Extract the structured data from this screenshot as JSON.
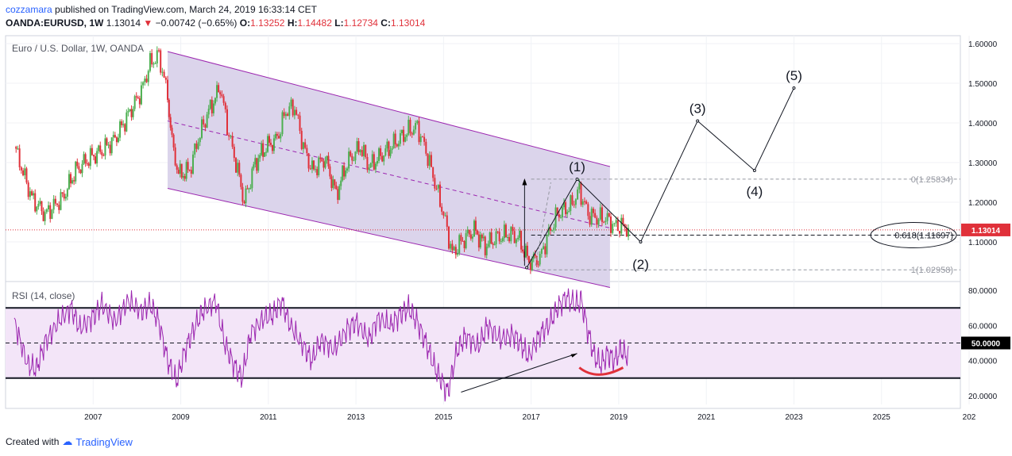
{
  "header": {
    "author": "cozzamara",
    "published_text": "published on TradingView.com, March 24, 2019 16:33:14 CET",
    "symbol": "OANDA:EURUSD, 1W",
    "last": "1.13014",
    "change": "−0.00742 (−0.65%)",
    "o_label": "O:",
    "o": "1.13252",
    "h_label": "H:",
    "h": "1.14482",
    "l_label": "L:",
    "l": "1.12734",
    "c_label": "C:",
    "c": "1.13014"
  },
  "footer": {
    "created_with": "Created with",
    "brand": "TradingView"
  },
  "colors": {
    "channel_fill": "#d9d2ea",
    "channel_line": "#9c27b0",
    "rsi_line": "#9c27b0",
    "rsi_band": "#f3e5f8",
    "up": "#4caf50",
    "down": "#e0313a",
    "price_tag": "#e0313a"
  },
  "chart_data": [
    {
      "type": "line",
      "title": "Euro / U.S. Dollar, 1W, OANDA",
      "series": [
        {
          "name": "EURUSD weekly close (approx.)",
          "x": [
            2005.2,
            2005.6,
            2005.9,
            2006.3,
            2006.6,
            2006.9,
            2007.2,
            2007.5,
            2007.8,
            2008.1,
            2008.3,
            2008.5,
            2008.7,
            2008.8,
            2008.95,
            2009.2,
            2009.4,
            2009.6,
            2009.9,
            2010.1,
            2010.3,
            2010.45,
            2010.7,
            2010.95,
            2011.2,
            2011.4,
            2011.6,
            2011.8,
            2012.0,
            2012.3,
            2012.55,
            2012.8,
            2013.1,
            2013.3,
            2013.6,
            2013.9,
            2014.2,
            2014.4,
            2014.6,
            2014.8,
            2015.0,
            2015.2,
            2015.4,
            2015.7,
            2015.95,
            2016.2,
            2016.5,
            2016.7,
            2016.95,
            2017.2,
            2017.4,
            2017.6,
            2017.9,
            2018.1,
            2018.3,
            2018.5,
            2018.7,
            2018.9,
            2019.1,
            2019.22
          ],
          "values": [
            1.34,
            1.21,
            1.17,
            1.21,
            1.28,
            1.31,
            1.33,
            1.36,
            1.42,
            1.48,
            1.55,
            1.57,
            1.47,
            1.35,
            1.27,
            1.28,
            1.36,
            1.42,
            1.49,
            1.37,
            1.28,
            1.2,
            1.3,
            1.34,
            1.36,
            1.43,
            1.44,
            1.34,
            1.28,
            1.31,
            1.22,
            1.3,
            1.34,
            1.29,
            1.32,
            1.35,
            1.38,
            1.39,
            1.33,
            1.25,
            1.17,
            1.07,
            1.1,
            1.13,
            1.09,
            1.11,
            1.12,
            1.11,
            1.05,
            1.06,
            1.12,
            1.17,
            1.19,
            1.23,
            1.17,
            1.16,
            1.16,
            1.14,
            1.14,
            1.13
          ]
        }
      ],
      "xlabel": "",
      "ylabel": "",
      "x_ticks": [
        "2007",
        "2009",
        "2011",
        "2013",
        "2015",
        "2017",
        "2019",
        "2021",
        "2023",
        "2025",
        "202"
      ],
      "y_ticks": [
        "1.60000",
        "1.50000",
        "1.40000",
        "1.30000",
        "1.20000",
        "1.10000"
      ],
      "ylim": [
        1.0,
        1.62
      ],
      "last_price_label": "1.13014",
      "channel": {
        "upper": [
          [
            2008.7,
            1.58
          ],
          [
            2018.8,
            1.29
          ]
        ],
        "lower": [
          [
            2008.7,
            1.235
          ],
          [
            2018.8,
            0.985
          ]
        ],
        "midline": [
          [
            2008.7,
            1.405
          ],
          [
            2018.8,
            1.135
          ]
        ]
      },
      "elliott_wave": [
        [
          2016.9,
          1.035
        ],
        [
          2018.05,
          1.258
        ],
        [
          2019.5,
          1.1
        ],
        [
          2020.8,
          1.405
        ],
        [
          2022.1,
          1.28
        ],
        [
          2023.0,
          1.488
        ]
      ],
      "wave_labels": [
        "(1)",
        "(2)",
        "(3)",
        "(4)",
        "(5)"
      ],
      "fibonacci": [
        {
          "level": "0",
          "price": 1.25834,
          "label": "0(1.25834)"
        },
        {
          "level": "0.618",
          "price": 1.11697,
          "label": "0.618(1.11697)"
        },
        {
          "level": "1",
          "price": 1.02958,
          "label": "1(1.02958)"
        }
      ]
    },
    {
      "type": "line",
      "title": "RSI (14, close)",
      "series": [
        {
          "name": "RSI",
          "x": [
            2005.2,
            2005.5,
            2005.7,
            2005.9,
            2006.2,
            2006.5,
            2006.7,
            2007.0,
            2007.2,
            2007.5,
            2007.8,
            2008.1,
            2008.3,
            2008.5,
            2008.7,
            2008.9,
            2009.1,
            2009.3,
            2009.5,
            2009.8,
            2010.0,
            2010.2,
            2010.4,
            2010.6,
            2010.9,
            2011.1,
            2011.3,
            2011.5,
            2011.8,
            2012.0,
            2012.2,
            2012.5,
            2012.8,
            2013.0,
            2013.3,
            2013.5,
            2013.8,
            2014.0,
            2014.2,
            2014.4,
            2014.6,
            2014.8,
            2015.0,
            2015.1,
            2015.3,
            2015.5,
            2015.8,
            2016.0,
            2016.3,
            2016.6,
            2016.8,
            2016.95,
            2017.2,
            2017.4,
            2017.6,
            2017.8,
            2018.0,
            2018.15,
            2018.3,
            2018.45,
            2018.6,
            2018.75,
            2018.9,
            2019.05,
            2019.22
          ],
          "values": [
            62,
            38,
            35,
            50,
            62,
            70,
            58,
            65,
            72,
            62,
            74,
            68,
            72,
            62,
            40,
            28,
            46,
            58,
            68,
            74,
            50,
            38,
            30,
            56,
            64,
            66,
            74,
            60,
            48,
            40,
            52,
            46,
            58,
            62,
            52,
            64,
            60,
            66,
            70,
            62,
            50,
            36,
            26,
            22,
            45,
            54,
            48,
            60,
            52,
            55,
            48,
            42,
            55,
            60,
            70,
            76,
            72,
            74,
            56,
            42,
            38,
            44,
            40,
            46,
            42
          ]
        }
      ],
      "y_ticks": [
        "80.0000",
        "60.0000",
        "50.0000",
        "40.0000",
        "20.0000"
      ],
      "ylim": [
        15,
        85
      ],
      "bands": [
        30,
        70
      ],
      "midline": 50,
      "midline_label": "50.0000"
    }
  ]
}
